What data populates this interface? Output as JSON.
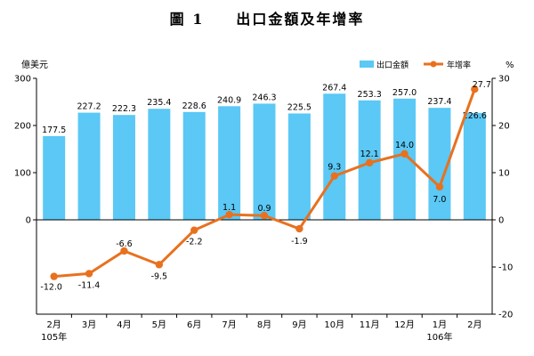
{
  "title": "圖 1　　出口金額及年增率",
  "colors": {
    "bar": "#5bc8f5",
    "line": "#e8711f",
    "axis": "#000000"
  },
  "chart_data": {
    "type": "bar",
    "categories": [
      "2月",
      "3月",
      "4月",
      "5月",
      "6月",
      "7月",
      "8月",
      "9月",
      "10月",
      "11月",
      "12月",
      "1月",
      "2月"
    ],
    "year_labels": [
      {
        "index": 0,
        "text": "105年"
      },
      {
        "index": 11,
        "text": "106年"
      }
    ],
    "series": [
      {
        "name": "出口金額",
        "type": "bar",
        "axis": "left",
        "values": [
          177.5,
          227.2,
          222.3,
          235.4,
          228.6,
          240.9,
          246.3,
          225.5,
          267.4,
          253.3,
          257.0,
          237.4,
          226.6
        ],
        "labels": [
          "177.5",
          "227.2",
          "222.3",
          "235.4",
          "228.6",
          "240.9",
          "246.3",
          "225.5",
          "267.4",
          "253.3",
          "257.0",
          "237.4",
          "226.6"
        ]
      },
      {
        "name": "年增率",
        "type": "line",
        "axis": "right",
        "values": [
          -12.0,
          -11.4,
          -6.6,
          -9.5,
          -2.2,
          1.1,
          0.9,
          -1.9,
          9.3,
          12.1,
          14.0,
          7.0,
          27.7
        ],
        "labels": [
          "-12.0",
          "-11.4",
          "-6.6",
          "-9.5",
          "-2.2",
          "1.1",
          "0.9",
          "-1.9",
          "9.3",
          "12.1",
          "14.0",
          "7.0",
          "27.7"
        ]
      }
    ],
    "left_axis": {
      "unit": "億美元",
      "range": [
        -200,
        300
      ],
      "ticks": [
        "300",
        "200",
        "100",
        "0"
      ]
    },
    "right_axis": {
      "unit": "%",
      "range": [
        -20,
        30
      ],
      "ticks": [
        "30",
        "20",
        "10",
        "0",
        "-10",
        "-20"
      ]
    },
    "legend": {
      "position": "top-right"
    },
    "grid": false
  }
}
